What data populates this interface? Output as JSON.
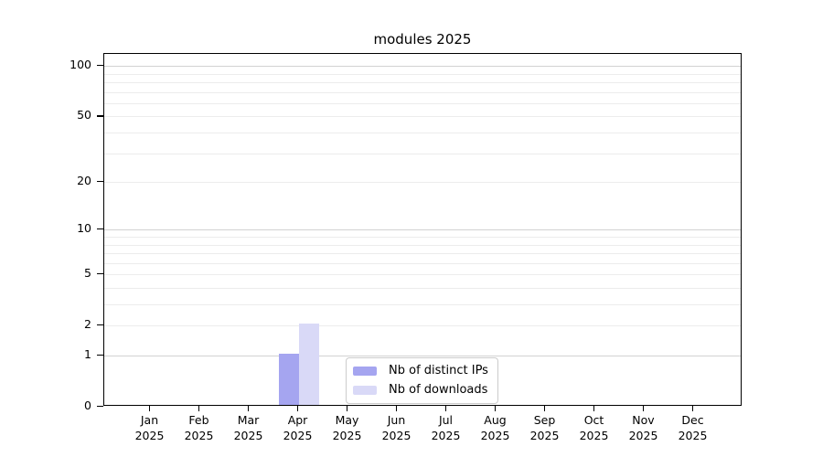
{
  "chart_data": {
    "type": "bar",
    "title": "modules 2025",
    "categories": [
      "Jan",
      "Feb",
      "Mar",
      "Apr",
      "May",
      "Jun",
      "Jul",
      "Aug",
      "Sep",
      "Oct",
      "Nov",
      "Dec"
    ],
    "year_label": "2025",
    "series": [
      {
        "name": "Nb of distinct IPs",
        "color": "#a5a5f0",
        "values": [
          0,
          0,
          0,
          1,
          0,
          0,
          0,
          0,
          0,
          0,
          0,
          0
        ]
      },
      {
        "name": "Nb of downloads",
        "color": "#d9d9f7",
        "values": [
          0,
          0,
          0,
          2,
          0,
          0,
          0,
          0,
          0,
          0,
          0,
          0
        ]
      }
    ],
    "yscale": "log1p",
    "ylim": [
      0,
      118
    ],
    "yticks": [
      0,
      1,
      2,
      5,
      10,
      20,
      50,
      100
    ],
    "ygrid_major": [
      1,
      10,
      100
    ],
    "ygrid_minor": [
      2,
      3,
      4,
      5,
      6,
      7,
      8,
      9,
      20,
      30,
      40,
      50,
      60,
      70,
      80,
      90
    ],
    "xlabel": "",
    "ylabel": "",
    "grid": "horizontal",
    "legend_position": "lower center"
  },
  "colors": {
    "bar_distinct_ips": "#a5a5f0",
    "bar_downloads": "#d9d9f7",
    "grid_major": "#d2d2d2",
    "grid_minor": "#ececec",
    "spine": "#000000",
    "background": "#ffffff",
    "legend_border": "#cccccc"
  }
}
